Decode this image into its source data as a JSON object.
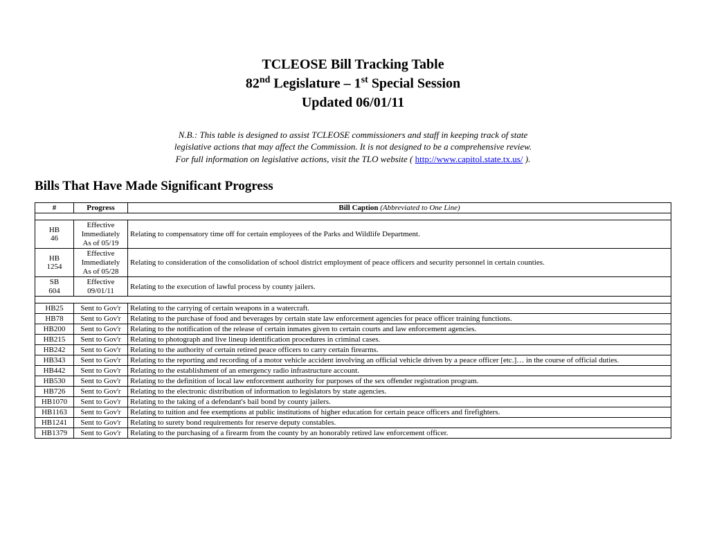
{
  "title": {
    "line1": "TCLEOSE Bill Tracking Table",
    "line2_pre": "82",
    "line2_sup1": "nd",
    "line2_mid": " Legislature – 1",
    "line2_sup2": "st",
    "line2_post": " Special Session",
    "line3": "Updated 06/01/11"
  },
  "note": {
    "line1": "N.B.:  This table is designed to assist TCLEOSE commissioners and staff in keeping track of state",
    "line2": "legislative actions that may affect the Commission.  It is not designed to be a comprehensive review.",
    "line3_pre": "For full information on legislative actions, visit the TLO website ( ",
    "link_text": "http://www.capitol.state.tx.us/",
    "line3_post": " )."
  },
  "section_heading": "Bills That Have Made Significant Progress",
  "columns": {
    "num": "#",
    "progress": "Progress",
    "caption_bold": "Bill Caption",
    "caption_italic": "   (Abbreviated to One Line)"
  },
  "enacted": [
    {
      "num_line1": "HB",
      "num_line2": "46",
      "progress_line1": "Effective",
      "progress_line2": "Immediately",
      "progress_line3": "As of 05/19",
      "caption": "Relating to compensatory time off for certain employees of the Parks and Wildlife Department."
    },
    {
      "num_line1": "HB",
      "num_line2": "1254",
      "progress_line1": "Effective",
      "progress_line2": "Immediately",
      "progress_line3": "As of 05/28",
      "caption": "Relating to consideration of the consolidation of school district employment of peace officers and security personnel in certain counties."
    },
    {
      "num_line1": "SB",
      "num_line2": "604",
      "progress_line1": "Effective",
      "progress_line2": "09/01/11",
      "progress_line3": "",
      "caption": "Relating to the execution of lawful process by county jailers."
    }
  ],
  "rows": [
    {
      "num": "HB25",
      "progress": "Sent to Gov'r",
      "caption": "Relating to the carrying of certain weapons in a watercraft."
    },
    {
      "num": "HB78",
      "progress": "Sent to Gov'r",
      "caption": "Relating to the purchase of food and beverages by certain state law enforcement agencies for peace officer training functions."
    },
    {
      "num": "HB200",
      "progress": "Sent to Gov'r",
      "caption": "Relating to the notification of the release of certain inmates given to certain courts and law enforcement agencies."
    },
    {
      "num": "HB215",
      "progress": "Sent to Gov'r",
      "caption": "Relating to photograph and live lineup identification procedures in criminal cases."
    },
    {
      "num": "HB242",
      "progress": "Sent to Gov'r",
      "caption": "Relating to the authority of certain retired peace officers to carry certain firearms."
    },
    {
      "num": "HB343",
      "progress": "Sent to Gov'r",
      "caption": "Relating to the reporting and recording of a motor vehicle accident involving an official vehicle driven by a peace officer [etc.]… in the course of official duties."
    },
    {
      "num": "HB442",
      "progress": "Sent to Gov'r",
      "caption": "Relating to the establishment of an emergency radio infrastructure account."
    },
    {
      "num": "HB530",
      "progress": "Sent to Gov'r",
      "caption": "Relating to the definition of local law enforcement authority for purposes of the sex offender registration program."
    },
    {
      "num": "HB726",
      "progress": "Sent to Gov'r",
      "caption": "Relating to the electronic distribution of information to legislators by state agencies."
    },
    {
      "num": "HB1070",
      "progress": "Sent to Gov'r",
      "caption": "Relating to the taking of a defendant's bail bond by county jailers."
    },
    {
      "num": "HB1163",
      "progress": "Sent to Gov'r",
      "caption": "Relating to tuition and fee exemptions at public institutions of higher education for certain peace officers and firefighters."
    },
    {
      "num": "HB1241",
      "progress": "Sent to Gov'r",
      "caption": "Relating to surety bond requirements for reserve deputy constables."
    },
    {
      "num": "HB1379",
      "progress": "Sent to Gov'r",
      "caption": "Relating to the purchasing of a firearm from the county by an honorably retired law enforcement officer."
    }
  ]
}
